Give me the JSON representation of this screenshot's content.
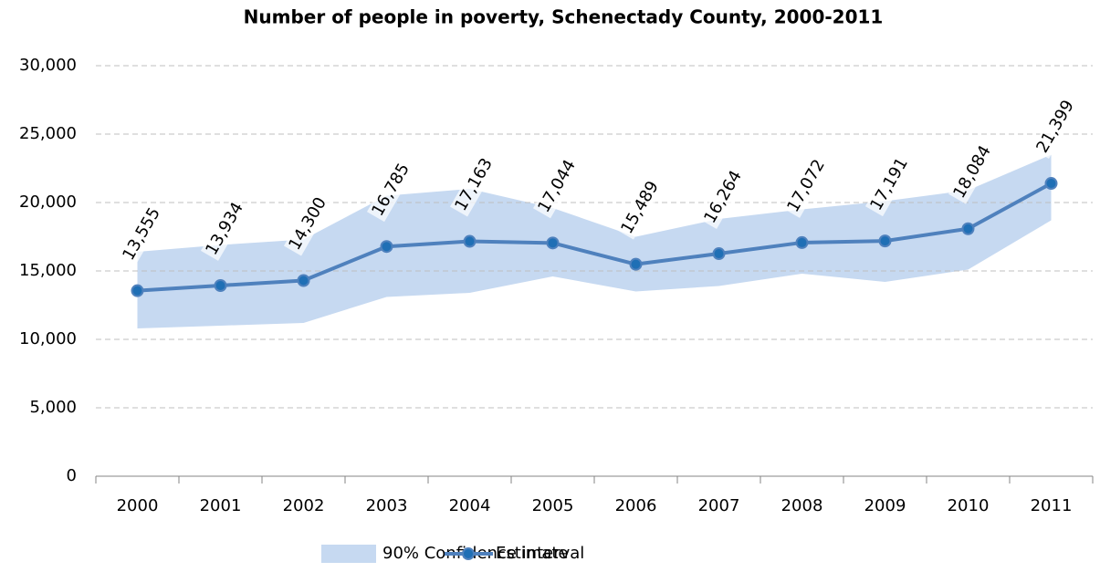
{
  "chart_data": {
    "type": "line",
    "title": "Number of people in poverty, Schenectady County, 2000-2011",
    "categories": [
      "2000",
      "2001",
      "2002",
      "2003",
      "2004",
      "2005",
      "2006",
      "2007",
      "2008",
      "2009",
      "2010",
      "2011"
    ],
    "band": {
      "name": "90% Confidence interval",
      "color": "#c6d9f1",
      "lower": [
        10800,
        11000,
        11200,
        13100,
        13400,
        14600,
        13500,
        13900,
        14800,
        14200,
        15100,
        18700
      ],
      "upper": [
        16400,
        16900,
        17300,
        20500,
        21000,
        19600,
        17500,
        18800,
        19500,
        20100,
        20900,
        23500
      ]
    },
    "series": [
      {
        "name": "Estimate",
        "color": "#4f81bd",
        "values": [
          13555,
          13934,
          14300,
          16785,
          17163,
          17044,
          15489,
          16264,
          17072,
          17191,
          18084,
          21399
        ],
        "value_labels": [
          "13,555",
          "13,934",
          "14,300",
          "16,785",
          "17,163",
          "17,044",
          "15,489",
          "16,264",
          "17,072",
          "17,191",
          "18,084",
          "21,399"
        ]
      }
    ],
    "ylim": [
      0,
      30000
    ],
    "yticks": [
      0,
      {
        "value": 5000,
        "label": "5,000"
      },
      {
        "value": 10000,
        "label": "10,000"
      },
      {
        "value": 15000,
        "label": "15,000"
      },
      {
        "value": 20000,
        "label": "20,000"
      },
      {
        "value": 25000,
        "label": "25,000"
      },
      {
        "value": 30000,
        "label": "30,000"
      }
    ],
    "grid": true,
    "legend": "bottom"
  }
}
